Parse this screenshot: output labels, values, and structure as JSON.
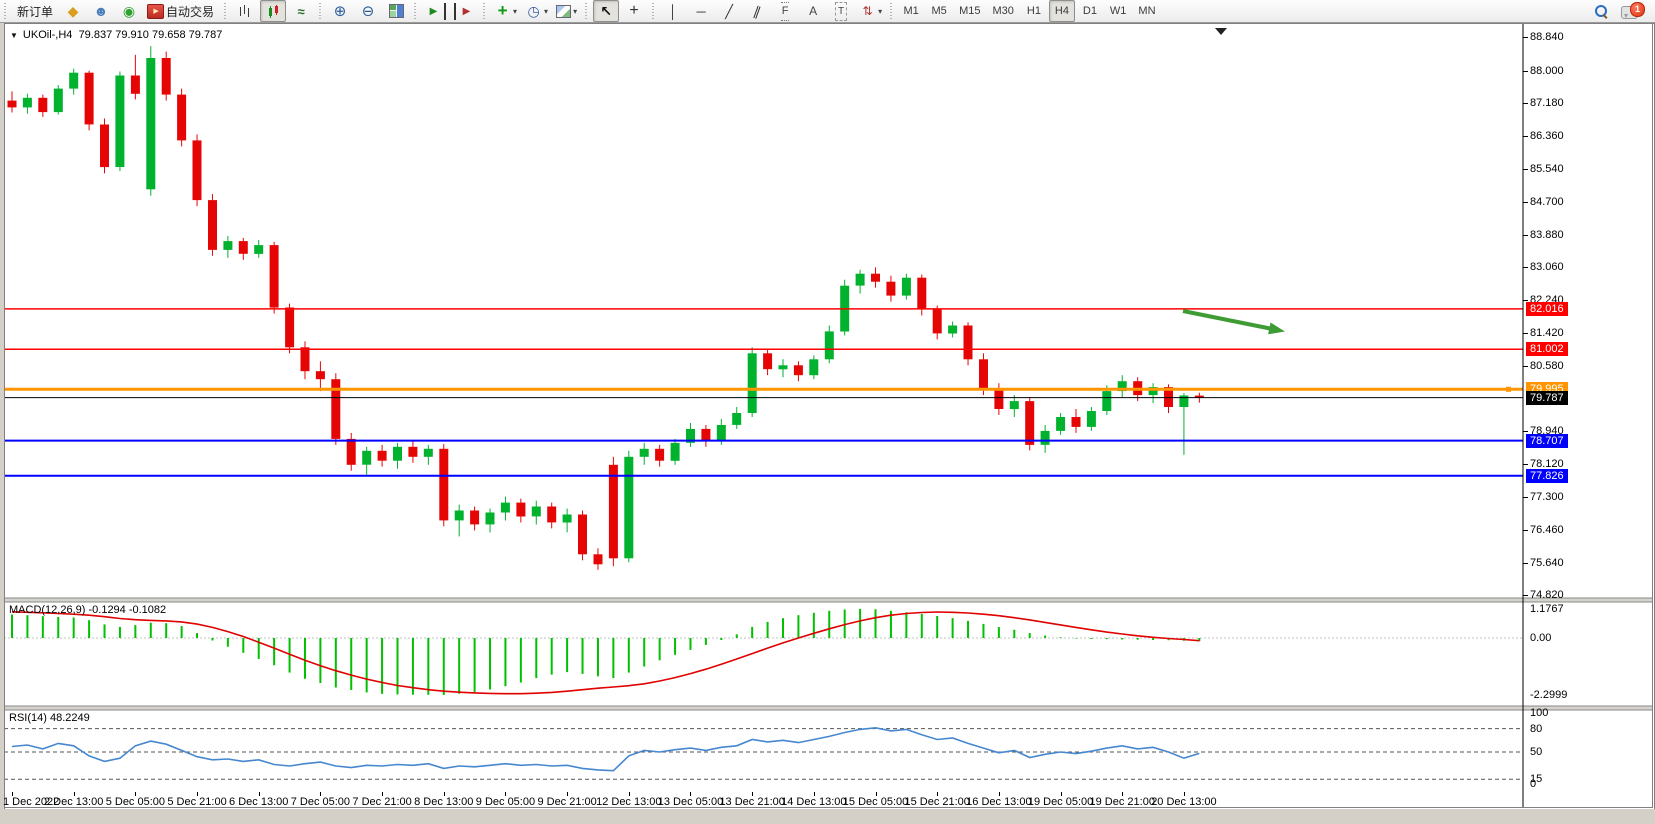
{
  "toolbar": {
    "groups": [
      {
        "buttons": [
          {
            "name": "new-order",
            "label": "新订单",
            "text": true
          },
          {
            "name": "market"
          },
          {
            "name": "community"
          },
          {
            "name": "signals"
          },
          {
            "name": "autotrading",
            "label": "自动交易"
          }
        ]
      },
      {
        "buttons": [
          {
            "name": "bars-chart"
          },
          {
            "name": "candles-chart",
            "active": true
          },
          {
            "name": "line-chart"
          }
        ]
      },
      {
        "buttons": [
          {
            "name": "zoom-in"
          },
          {
            "name": "zoom-out"
          },
          {
            "name": "tile-windows"
          }
        ]
      },
      {
        "buttons": [
          {
            "name": "auto-scroll"
          },
          {
            "name": "chart-shift"
          }
        ]
      },
      {
        "buttons": [
          {
            "name": "indicators",
            "caret": true
          },
          {
            "name": "periods",
            "caret": true
          },
          {
            "name": "templates",
            "caret": true
          }
        ]
      },
      {
        "buttons": [
          {
            "name": "cursor",
            "active": true
          },
          {
            "name": "crosshair"
          }
        ]
      },
      {
        "buttons": [
          {
            "name": "vertical-line"
          },
          {
            "name": "horizontal-line"
          },
          {
            "name": "trend-line"
          },
          {
            "name": "equidistant-channel"
          },
          {
            "name": "fibonacci"
          },
          {
            "name": "text"
          },
          {
            "name": "text-label"
          },
          {
            "name": "arrows",
            "caret": true
          }
        ]
      },
      {
        "buttons": [
          {
            "name": "tf-m1",
            "label": "M1",
            "text": true
          },
          {
            "name": "tf-m5",
            "label": "M5",
            "text": true
          },
          {
            "name": "tf-m15",
            "label": "M15",
            "text": true
          },
          {
            "name": "tf-m30",
            "label": "M30",
            "text": true
          },
          {
            "name": "tf-h1",
            "label": "H1",
            "text": true
          },
          {
            "name": "tf-h4",
            "label": "H4",
            "text": true,
            "active": true
          },
          {
            "name": "tf-d1",
            "label": "D1",
            "text": true
          },
          {
            "name": "tf-w1",
            "label": "W1",
            "text": true
          },
          {
            "name": "tf-mn",
            "label": "MN",
            "text": true
          }
        ]
      }
    ],
    "right": [
      {
        "name": "search"
      },
      {
        "name": "chat",
        "badge": "1"
      }
    ]
  },
  "chart": {
    "symbol_period": "UKOil-,H4",
    "ohlc_display": "79.837 79.910 79.658 79.787"
  },
  "chart_data": {
    "type": "candlestick",
    "symbol": "UKOil-",
    "period": "H4",
    "current_bar_ohlc": [
      79.837,
      79.91,
      79.658,
      79.787
    ],
    "colors": {
      "up": "#00b22d",
      "down": "#e60505",
      "macd_hist": "#00c000",
      "macd_signal": "#e00000",
      "rsi_line": "#4687d0",
      "arrow": "#3f9c35"
    },
    "bars": [
      [
        87.25,
        87.48,
        86.95,
        87.08
      ],
      [
        87.08,
        87.42,
        86.92,
        87.32
      ],
      [
        87.32,
        87.4,
        86.84,
        86.96
      ],
      [
        86.96,
        87.64,
        86.9,
        87.55
      ],
      [
        87.55,
        88.05,
        87.4,
        87.95
      ],
      [
        87.95,
        88.0,
        86.5,
        86.65
      ],
      [
        86.65,
        86.8,
        85.42,
        85.58
      ],
      [
        85.58,
        87.98,
        85.48,
        87.88
      ],
      [
        87.88,
        88.4,
        87.28,
        87.42
      ],
      [
        85.02,
        88.62,
        84.86,
        88.32
      ],
      [
        88.32,
        88.48,
        87.25,
        87.4
      ],
      [
        87.4,
        87.55,
        86.1,
        86.25
      ],
      [
        86.25,
        86.4,
        84.6,
        84.75
      ],
      [
        84.75,
        84.9,
        83.35,
        83.5
      ],
      [
        83.5,
        83.85,
        83.3,
        83.72
      ],
      [
        83.72,
        83.8,
        83.25,
        83.4
      ],
      [
        83.4,
        83.75,
        83.3,
        83.62
      ],
      [
        83.62,
        83.7,
        81.9,
        82.05
      ],
      [
        82.05,
        82.15,
        80.9,
        81.05
      ],
      [
        81.05,
        81.2,
        80.25,
        80.45
      ],
      [
        80.45,
        80.7,
        79.95,
        80.25
      ],
      [
        80.25,
        80.4,
        78.6,
        78.75
      ],
      [
        78.75,
        78.9,
        77.95,
        78.1
      ],
      [
        78.1,
        78.55,
        77.85,
        78.45
      ],
      [
        78.45,
        78.6,
        78.05,
        78.2
      ],
      [
        78.2,
        78.65,
        78.0,
        78.55
      ],
      [
        78.55,
        78.7,
        78.15,
        78.3
      ],
      [
        78.3,
        78.6,
        78.1,
        78.5
      ],
      [
        78.5,
        78.62,
        76.55,
        76.7
      ],
      [
        76.7,
        77.1,
        76.3,
        76.95
      ],
      [
        76.95,
        77.05,
        76.45,
        76.6
      ],
      [
        76.6,
        77.0,
        76.4,
        76.9
      ],
      [
        76.9,
        77.3,
        76.7,
        77.15
      ],
      [
        77.15,
        77.25,
        76.65,
        76.8
      ],
      [
        76.8,
        77.2,
        76.6,
        77.05
      ],
      [
        77.05,
        77.15,
        76.5,
        76.65
      ],
      [
        76.65,
        77.0,
        76.4,
        76.85
      ],
      [
        76.85,
        76.95,
        75.7,
        75.85
      ],
      [
        75.85,
        76.0,
        75.46,
        75.6
      ],
      [
        78.1,
        78.3,
        75.55,
        75.75
      ],
      [
        75.75,
        78.45,
        75.65,
        78.3
      ],
      [
        78.3,
        78.65,
        78.1,
        78.5
      ],
      [
        78.5,
        78.6,
        78.05,
        78.2
      ],
      [
        78.2,
        78.75,
        78.1,
        78.65
      ],
      [
        78.65,
        79.15,
        78.55,
        79.0
      ],
      [
        79.0,
        79.1,
        78.55,
        78.7
      ],
      [
        78.7,
        79.25,
        78.6,
        79.1
      ],
      [
        79.1,
        79.55,
        79.0,
        79.4
      ],
      [
        79.4,
        81.05,
        79.3,
        80.9
      ],
      [
        80.9,
        81.0,
        80.35,
        80.5
      ],
      [
        80.5,
        80.75,
        80.3,
        80.6
      ],
      [
        80.6,
        80.7,
        80.2,
        80.35
      ],
      [
        80.35,
        80.85,
        80.25,
        80.75
      ],
      [
        80.75,
        81.6,
        80.65,
        81.45
      ],
      [
        81.45,
        82.75,
        81.35,
        82.6
      ],
      [
        82.6,
        83.0,
        82.4,
        82.9
      ],
      [
        82.9,
        83.06,
        82.55,
        82.7
      ],
      [
        82.7,
        82.85,
        82.2,
        82.35
      ],
      [
        82.35,
        82.9,
        82.25,
        82.8
      ],
      [
        82.8,
        82.88,
        81.85,
        82.0
      ],
      [
        82.0,
        82.1,
        81.25,
        81.4
      ],
      [
        81.4,
        81.7,
        81.3,
        81.6
      ],
      [
        81.6,
        81.68,
        80.6,
        80.75
      ],
      [
        80.75,
        80.9,
        79.85,
        80.0
      ],
      [
        80.0,
        80.15,
        79.35,
        79.5
      ],
      [
        79.5,
        79.85,
        79.3,
        79.7
      ],
      [
        79.7,
        79.8,
        78.46,
        78.6
      ],
      [
        78.6,
        79.1,
        78.4,
        78.95
      ],
      [
        78.95,
        79.4,
        78.85,
        79.3
      ],
      [
        79.3,
        79.5,
        78.9,
        79.05
      ],
      [
        79.05,
        79.55,
        78.95,
        79.45
      ],
      [
        79.45,
        80.1,
        79.35,
        79.95
      ],
      [
        79.95,
        80.35,
        79.8,
        80.2
      ],
      [
        80.2,
        80.3,
        79.7,
        79.85
      ],
      [
        79.85,
        80.15,
        79.65,
        80.05
      ],
      [
        80.05,
        80.12,
        79.4,
        79.55
      ],
      [
        79.55,
        79.9,
        78.35,
        79.84
      ],
      [
        79.837,
        79.91,
        79.658,
        79.787
      ]
    ],
    "time_labels": [
      "1 Dec 2022",
      "2 Dec 13:00",
      "5 Dec 05:00",
      "5 Dec 21:00",
      "6 Dec 13:00",
      "7 Dec 05:00",
      "7 Dec 21:00",
      "8 Dec 13:00",
      "9 Dec 05:00",
      "9 Dec 21:00",
      "12 Dec 13:00",
      "13 Dec 05:00",
      "13 Dec 21:00",
      "14 Dec 13:00",
      "15 Dec 05:00",
      "15 Dec 21:00",
      "16 Dec 13:00",
      "19 Dec 05:00",
      "19 Dec 21:00",
      "20 Dec 13:00"
    ],
    "price_ticks": [
      "88.840",
      "88.000",
      "87.180",
      "86.360",
      "85.540",
      "84.700",
      "83.880",
      "83.060",
      "82.240",
      "81.420",
      "80.580",
      "78.940",
      "78.120",
      "77.300",
      "76.460",
      "75.640",
      "74.820"
    ],
    "hlines": [
      {
        "price": 82.016,
        "label": "82.016",
        "color": "#ff0000",
        "width": 1.5
      },
      {
        "price": 81.002,
        "label": "81.002",
        "color": "#ff0000",
        "width": 1.5
      },
      {
        "price": 79.995,
        "label": "79.995",
        "color": "#ff9500",
        "width": 3
      },
      {
        "price": 78.707,
        "label": "78.707",
        "color": "#0000ff",
        "width": 2
      },
      {
        "price": 77.826,
        "label": "77.826",
        "color": "#0000ff",
        "width": 2
      }
    ],
    "current_price": {
      "price": 79.787,
      "label": "79.787",
      "color": "#000000"
    },
    "macd": {
      "name": "MACD(12,26,9)",
      "values_label": "-0.1294 -0.1082",
      "axis": [
        {
          "v": 1.1767,
          "label": "1.1767"
        },
        {
          "v": 0,
          "label": "0.00"
        },
        {
          "v": -2.2999,
          "label": "-2.2999"
        }
      ],
      "histogram": [
        0.95,
        0.92,
        0.88,
        0.85,
        0.83,
        0.72,
        0.55,
        0.45,
        0.52,
        0.62,
        0.6,
        0.48,
        0.2,
        -0.1,
        -0.35,
        -0.6,
        -0.85,
        -1.1,
        -1.4,
        -1.65,
        -1.82,
        -2.0,
        -2.1,
        -2.2,
        -2.26,
        -2.28,
        -2.29,
        -2.295,
        -2.2999,
        -2.25,
        -2.18,
        -2.08,
        -1.95,
        -1.8,
        -1.62,
        -1.48,
        -1.38,
        -1.45,
        -1.55,
        -1.62,
        -1.4,
        -1.15,
        -0.9,
        -0.68,
        -0.48,
        -0.28,
        -0.08,
        0.15,
        0.45,
        0.65,
        0.8,
        0.92,
        1.02,
        1.1,
        1.15,
        1.1767,
        1.16,
        1.1,
        1.04,
        0.97,
        0.89,
        0.8,
        0.69,
        0.57,
        0.44,
        0.33,
        0.2,
        0.1,
        0.03,
        -0.02,
        -0.04,
        -0.05,
        -0.06,
        -0.07,
        -0.08,
        -0.09,
        -0.11,
        -0.1294
      ],
      "signal": [
        1.06,
        1.04,
        1.02,
        0.99,
        0.96,
        0.92,
        0.86,
        0.79,
        0.74,
        0.71,
        0.69,
        0.65,
        0.56,
        0.43,
        0.26,
        0.06,
        -0.17,
        -0.41,
        -0.66,
        -0.9,
        -1.12,
        -1.32,
        -1.5,
        -1.66,
        -1.8,
        -1.92,
        -2.01,
        -2.09,
        -2.15,
        -2.19,
        -2.22,
        -2.24,
        -2.25,
        -2.25,
        -2.23,
        -2.2,
        -2.15,
        -2.09,
        -2.03,
        -1.98,
        -1.93,
        -1.85,
        -1.74,
        -1.6,
        -1.44,
        -1.26,
        -1.06,
        -0.85,
        -0.63,
        -0.41,
        -0.2,
        0.0,
        0.19,
        0.37,
        0.54,
        0.69,
        0.82,
        0.92,
        0.99,
        1.03,
        1.05,
        1.04,
        1.01,
        0.96,
        0.9,
        0.82,
        0.73,
        0.63,
        0.53,
        0.43,
        0.33,
        0.24,
        0.16,
        0.09,
        0.03,
        -0.02,
        -0.06,
        -0.1082
      ]
    },
    "rsi": {
      "name": "RSI(14)",
      "value_label": "48.2249",
      "axis": [
        {
          "v": 100,
          "label": "100"
        },
        {
          "v": 80,
          "label": "80"
        },
        {
          "v": 50,
          "label": "50"
        },
        {
          "v": 15,
          "label": "15"
        },
        {
          "v": 0,
          "label": "0"
        }
      ],
      "levels": [
        80,
        50,
        15
      ],
      "values": [
        57,
        59,
        54,
        61,
        58,
        45,
        38,
        42,
        58,
        64,
        60,
        52,
        44,
        40,
        41,
        38,
        40,
        34,
        32,
        35,
        37,
        32,
        30,
        33,
        32,
        34,
        33,
        35,
        29,
        32,
        31,
        33,
        35,
        33,
        34,
        32,
        33,
        29,
        27,
        26,
        45,
        52,
        50,
        53,
        55,
        52,
        56,
        58,
        66,
        63,
        65,
        62,
        66,
        70,
        75,
        79,
        81,
        77,
        79,
        72,
        66,
        68,
        61,
        55,
        49,
        52,
        43,
        47,
        50,
        48,
        51,
        55,
        58,
        54,
        56,
        50,
        42,
        48.22
      ]
    }
  }
}
